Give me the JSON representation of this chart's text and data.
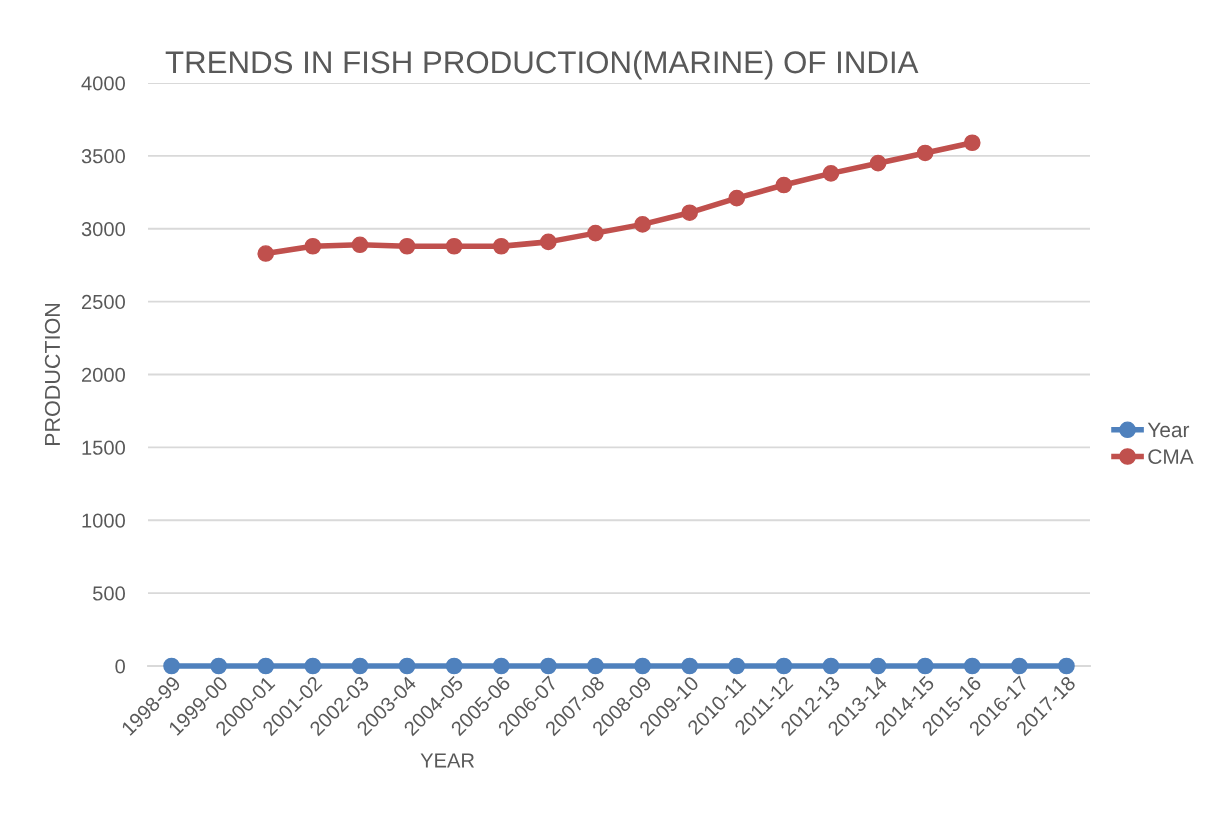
{
  "chart_data": {
    "type": "line",
    "title": "TRENDS IN FISH PRODUCTION(MARINE) OF INDIA",
    "xlabel": "YEAR",
    "ylabel": "PRODUCTION",
    "categories": [
      "1998-99",
      "1999-00",
      "2000-01",
      "2001-02",
      "2002-03",
      "2003-04",
      "2004-05",
      "2005-06",
      "2006-07",
      "2007-08",
      "2008-09",
      "2009-10",
      "2010-11",
      "2011-12",
      "2012-13",
      "2013-14",
      "2014-15",
      "2015-16",
      "2016-17",
      "2017-18"
    ],
    "series": [
      {
        "name": "Year",
        "color": "#4f81bd",
        "values": [
          0,
          0,
          0,
          0,
          0,
          0,
          0,
          0,
          0,
          0,
          0,
          0,
          0,
          0,
          0,
          0,
          0,
          0,
          0,
          0
        ]
      },
      {
        "name": "CMA",
        "color": "#c0504d",
        "values": [
          null,
          null,
          2830,
          2880,
          2890,
          2880,
          2880,
          2880,
          2910,
          2970,
          3030,
          3110,
          3210,
          3300,
          3380,
          3450,
          3520,
          3590,
          null,
          null
        ]
      }
    ],
    "ylim": [
      0,
      4000
    ],
    "yticks": [
      0,
      500,
      1000,
      1500,
      2000,
      2500,
      3000,
      3500,
      4000
    ],
    "grid": "y",
    "legend": "right",
    "marker": "circle",
    "line_style": "solid"
  }
}
